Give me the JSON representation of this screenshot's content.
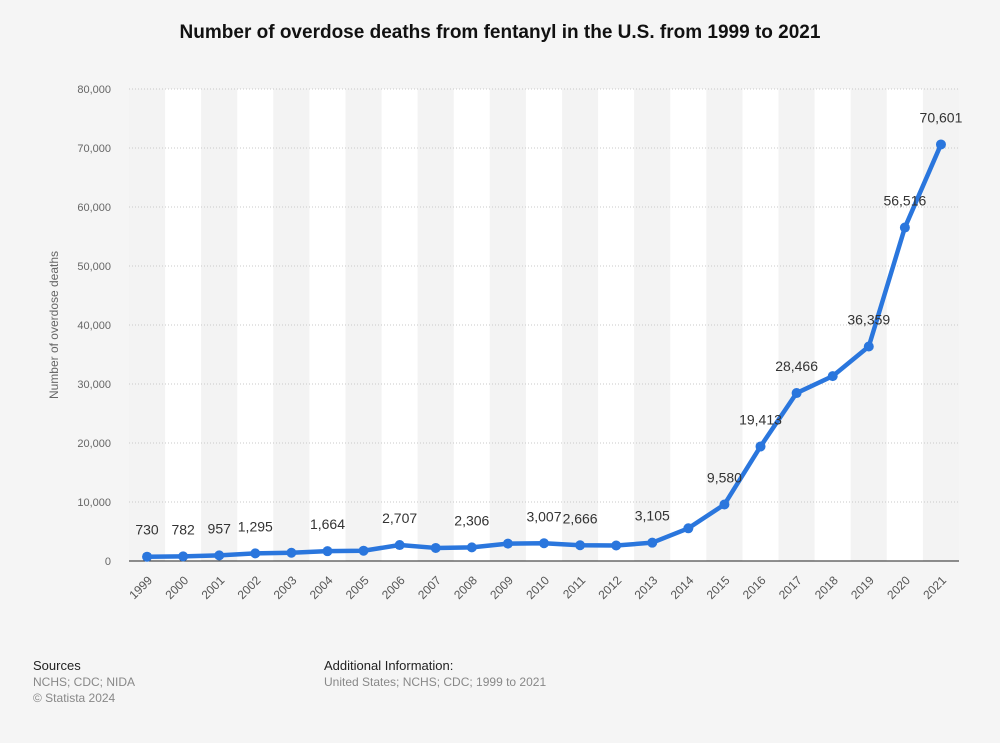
{
  "chart_data": {
    "type": "line",
    "title": "Number of overdose deaths from fentanyl in the U.S. from 1999 to 2021",
    "xlabel": "",
    "ylabel": "Number of overdose deaths",
    "ylim": [
      0,
      80000
    ],
    "yticks": [
      "0",
      "10,000",
      "20,000",
      "30,000",
      "40,000",
      "50,000",
      "60,000",
      "70,000",
      "80,000"
    ],
    "ytick_values": [
      0,
      10000,
      20000,
      30000,
      40000,
      50000,
      60000,
      70000,
      80000
    ],
    "grid": true,
    "categories": [
      "1999",
      "2000",
      "2001",
      "2002",
      "2003",
      "2004",
      "2005",
      "2006",
      "2007",
      "2008",
      "2009",
      "2010",
      "2011",
      "2012",
      "2013",
      "2014",
      "2015",
      "2016",
      "2017",
      "2018",
      "2019",
      "2020",
      "2021"
    ],
    "values": [
      730,
      782,
      957,
      1295,
      1400,
      1664,
      1742,
      2707,
      2213,
      2306,
      2946,
      3007,
      2666,
      2628,
      3105,
      5544,
      9580,
      19413,
      28466,
      31335,
      36359,
      56516,
      70601
    ],
    "data_labels": [
      "730",
      "782",
      "957",
      "1,295",
      null,
      "1,664",
      null,
      "2,707",
      null,
      "2,306",
      null,
      "3,007",
      "2,666",
      null,
      "3,105",
      null,
      "9,580",
      "19,413",
      "28,466",
      null,
      "36,359",
      "56,516",
      "70,601"
    ],
    "line_color": "#2a76dd"
  },
  "footer": {
    "sources_heading": "Sources",
    "sources_text": "NCHS; CDC; NIDA",
    "copyright": "© Statista 2024",
    "additional_heading": "Additional Information:",
    "additional_text": "United States; NCHS; CDC; 1999 to 2021"
  }
}
